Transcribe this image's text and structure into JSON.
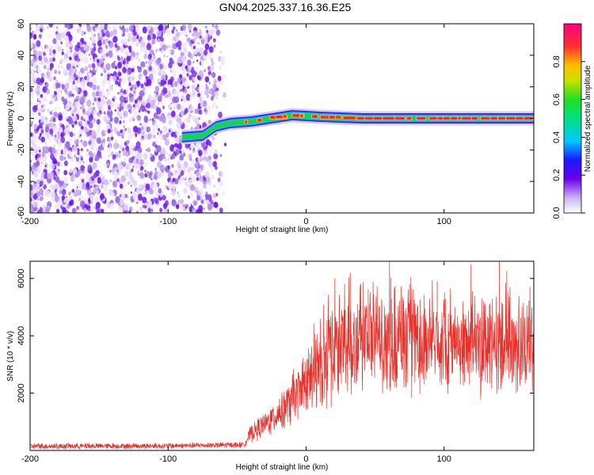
{
  "title": "GN04.2025.337.16.36.E25",
  "chart_data": [
    {
      "type": "heatmap",
      "name": "spectrogram",
      "xlabel": "Height of straight line (km)",
      "ylabel": "Frequency (Hz)",
      "xlim": [
        -200,
        165
      ],
      "ylim": [
        -60,
        60
      ],
      "xticks": [
        -200,
        -100,
        0,
        100
      ],
      "xtick_labels": [
        "-200",
        "-100",
        "0",
        "100"
      ],
      "yticks": [
        -60,
        -40,
        -20,
        0,
        20,
        40,
        60
      ],
      "ytick_labels": [
        "-60",
        "-40",
        "-20",
        "0",
        "20",
        "40",
        "60"
      ],
      "noise_region_x": [
        -200,
        -57
      ],
      "signal_band": {
        "x_start": -90,
        "center_hz": [
          {
            "x": -90,
            "hz": -12
          },
          {
            "x": -75,
            "hz": -11
          },
          {
            "x": -65,
            "hz": -5
          },
          {
            "x": -55,
            "hz": -3
          },
          {
            "x": -40,
            "hz": -2
          },
          {
            "x": -25,
            "hz": 0
          },
          {
            "x": -10,
            "hz": 2
          },
          {
            "x": 10,
            "hz": 1
          },
          {
            "x": 40,
            "hz": 0
          },
          {
            "x": 80,
            "hz": 0
          },
          {
            "x": 120,
            "hz": 0
          },
          {
            "x": 165,
            "hz": 0
          }
        ]
      },
      "colorbar": {
        "label": "Normalized spectral amplitude",
        "range": [
          0,
          1
        ],
        "ticks": [
          0.0,
          0.2,
          0.4,
          0.6,
          0.8
        ],
        "tick_labels": [
          "0.0",
          "0.2",
          "0.4",
          "0.6",
          "0.8"
        ]
      }
    },
    {
      "type": "line",
      "name": "snr",
      "xlabel": "Height of straight line (km)",
      "ylabel": "SNR (10 * v/v)",
      "xlim": [
        -200,
        165
      ],
      "ylim": [
        0,
        6600
      ],
      "xticks": [
        -200,
        -100,
        0,
        100
      ],
      "xtick_labels": [
        "-200",
        "-100",
        "0",
        "100"
      ],
      "yticks": [
        2000,
        4000,
        6000
      ],
      "ytick_labels": [
        "2000",
        "4000",
        "6000"
      ],
      "color": "#e8312b",
      "trend_points": [
        {
          "x": -200,
          "y": 150
        },
        {
          "x": -100,
          "y": 160
        },
        {
          "x": -45,
          "y": 200
        },
        {
          "x": -40,
          "y": 600
        },
        {
          "x": -30,
          "y": 900
        },
        {
          "x": -20,
          "y": 1300
        },
        {
          "x": -10,
          "y": 1800
        },
        {
          "x": 0,
          "y": 2300
        },
        {
          "x": 10,
          "y": 2900
        },
        {
          "x": 20,
          "y": 3500
        },
        {
          "x": 30,
          "y": 3800
        },
        {
          "x": 50,
          "y": 3900
        },
        {
          "x": 100,
          "y": 3800
        },
        {
          "x": 165,
          "y": 3700
        }
      ],
      "peaks": [
        {
          "x": 32,
          "y": 6200
        },
        {
          "x": 140,
          "y": 6600
        },
        {
          "x": 95,
          "y": 5900
        },
        {
          "x": 75,
          "y": 5800
        }
      ]
    }
  ]
}
